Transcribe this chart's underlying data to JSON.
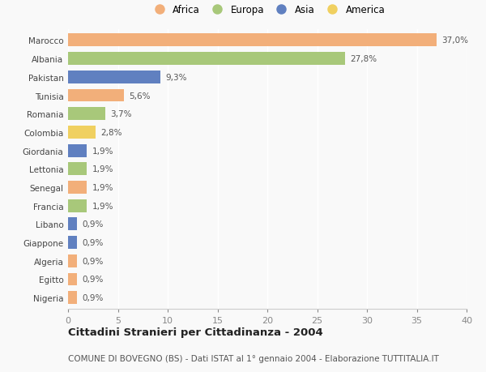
{
  "countries": [
    "Marocco",
    "Albania",
    "Pakistan",
    "Tunisia",
    "Romania",
    "Colombia",
    "Giordania",
    "Lettonia",
    "Senegal",
    "Francia",
    "Libano",
    "Giappone",
    "Algeria",
    "Egitto",
    "Nigeria"
  ],
  "values": [
    37.0,
    27.8,
    9.3,
    5.6,
    3.7,
    2.8,
    1.9,
    1.9,
    1.9,
    1.9,
    0.9,
    0.9,
    0.9,
    0.9,
    0.9
  ],
  "labels": [
    "37,0%",
    "27,8%",
    "9,3%",
    "5,6%",
    "3,7%",
    "2,8%",
    "1,9%",
    "1,9%",
    "1,9%",
    "1,9%",
    "0,9%",
    "0,9%",
    "0,9%",
    "0,9%",
    "0,9%"
  ],
  "continents": [
    "Africa",
    "Europa",
    "Asia",
    "Africa",
    "Europa",
    "America",
    "Asia",
    "Europa",
    "Africa",
    "Europa",
    "Asia",
    "Asia",
    "Africa",
    "Africa",
    "Africa"
  ],
  "colors": {
    "Africa": "#F2AF7A",
    "Europa": "#A8C87A",
    "Asia": "#6080C0",
    "America": "#F0D060"
  },
  "legend_order": [
    "Africa",
    "Europa",
    "Asia",
    "America"
  ],
  "xlim": [
    0,
    40
  ],
  "xticks": [
    0,
    5,
    10,
    15,
    20,
    25,
    30,
    35,
    40
  ],
  "title": "Cittadini Stranieri per Cittadinanza - 2004",
  "subtitle": "COMUNE DI BOVEGNO (BS) - Dati ISTAT al 1° gennaio 2004 - Elaborazione TUTTITALIA.IT",
  "bg_color": "#f9f9f9",
  "bar_height": 0.7,
  "label_fontsize": 7.5,
  "ytick_fontsize": 7.5,
  "xtick_fontsize": 8.0,
  "title_fontsize": 9.5,
  "subtitle_fontsize": 7.5
}
